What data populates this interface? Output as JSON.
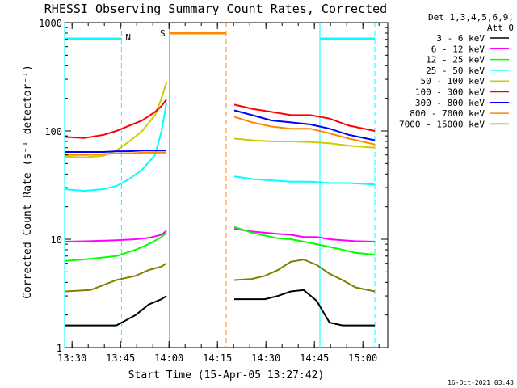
{
  "chart_data": {
    "type": "line",
    "title": "RHESSI Observing Summary Count Rates, Corrected",
    "xlabel": "Start Time (15-Apr-05 13:27:42)",
    "ylabel": "Corrected Count Rate (s⁻¹ detector⁻¹)",
    "yscale": "log",
    "xlim_minutes": [
      0,
      100
    ],
    "ylim": [
      1,
      1000
    ],
    "x_ticks": [
      {
        "label": "13:30",
        "min": 2.3
      },
      {
        "label": "13:45",
        "min": 17.3
      },
      {
        "label": "14:00",
        "min": 32.3
      },
      {
        "label": "14:15",
        "min": 47.3
      },
      {
        "label": "14:30",
        "min": 62.3
      },
      {
        "label": "14:45",
        "min": 77.3
      },
      {
        "label": "15:00",
        "min": 92.3
      }
    ],
    "y_ticks": [
      {
        "label": "1",
        "value": 1
      },
      {
        "label": "10",
        "value": 10
      },
      {
        "label": "100",
        "value": 100
      },
      {
        "label": "1000",
        "value": 1000
      }
    ],
    "legend_title": "Det 1,3,4,5,6,9,",
    "legend_subtitle": "Att 0",
    "annotations": {
      "night_label": "N",
      "saa_label": "S",
      "date_stamp": "16-Oct-2021 03:43",
      "night_intervals": [
        [
          0,
          17.6
        ],
        [
          79.0,
          96.0
        ]
      ],
      "saa_interval": [
        32.5,
        50.0
      ]
    },
    "data_gap": [
      31.5,
      52.5
    ],
    "series": [
      {
        "name": "3 - 6 keV",
        "color": "#000000",
        "x": [
          0,
          8,
          16,
          22,
          26,
          30,
          31.5,
          52.5,
          58,
          62,
          66,
          70,
          74,
          78,
          82,
          86,
          90,
          96
        ],
        "y": [
          1.6,
          1.6,
          1.6,
          2.0,
          2.5,
          2.8,
          3.0,
          2.8,
          2.8,
          2.8,
          3.0,
          3.3,
          3.4,
          2.7,
          1.7,
          1.6,
          1.6,
          1.6
        ]
      },
      {
        "name": "6 - 12 keV",
        "color": "#ff00ff",
        "x": [
          0,
          8,
          16,
          22,
          26,
          30,
          31.5,
          52.5,
          58,
          62,
          66,
          70,
          74,
          78,
          82,
          86,
          90,
          96
        ],
        "y": [
          9.5,
          9.6,
          9.8,
          10.0,
          10.3,
          11.0,
          12.0,
          12.5,
          11.8,
          11.5,
          11.2,
          11.0,
          10.5,
          10.5,
          10.0,
          9.8,
          9.6,
          9.5
        ]
      },
      {
        "name": "12 - 25 keV",
        "color": "#00ff00",
        "x": [
          0,
          8,
          16,
          22,
          26,
          30,
          31.5,
          52.5,
          58,
          62,
          66,
          70,
          74,
          78,
          82,
          86,
          90,
          96
        ],
        "y": [
          6.3,
          6.6,
          7.0,
          8.0,
          9.0,
          10.5,
          11.5,
          13.0,
          11.5,
          10.8,
          10.2,
          10.0,
          9.5,
          9.0,
          8.5,
          8.0,
          7.5,
          7.2
        ]
      },
      {
        "name": "25 - 50 keV",
        "color": "#00ffff",
        "x": [
          0,
          6,
          12,
          16,
          20,
          24,
          28,
          30,
          31.5,
          52.5,
          58,
          64,
          70,
          76,
          82,
          88,
          96
        ],
        "y": [
          29,
          28,
          29,
          31,
          36,
          44,
          60,
          100,
          180,
          38,
          36,
          35,
          34,
          34,
          33,
          33,
          32
        ]
      },
      {
        "name": "50 - 100 keV",
        "color": "#cccc00",
        "x": [
          0,
          6,
          12,
          16,
          20,
          24,
          28,
          30,
          31.5,
          52.5,
          58,
          64,
          70,
          76,
          82,
          88,
          96
        ],
        "y": [
          58,
          57,
          59,
          66,
          80,
          100,
          140,
          200,
          280,
          85,
          82,
          80,
          80,
          79,
          77,
          73,
          70
        ]
      },
      {
        "name": "100 - 300 keV",
        "color": "#ff0000",
        "x": [
          0,
          6,
          12,
          16,
          20,
          24,
          28,
          30,
          31.5,
          52.5,
          58,
          64,
          70,
          76,
          82,
          88,
          96
        ],
        "y": [
          88,
          86,
          92,
          100,
          112,
          125,
          150,
          170,
          195,
          175,
          160,
          150,
          140,
          140,
          130,
          112,
          100
        ]
      },
      {
        "name": "300 - 800 keV",
        "color": "#0000ff",
        "x": [
          0,
          6,
          12,
          16,
          20,
          24,
          28,
          30,
          31.5,
          52.5,
          58,
          64,
          70,
          76,
          82,
          88,
          96
        ],
        "y": [
          64,
          64,
          64,
          65,
          65,
          66,
          66,
          66,
          66,
          155,
          140,
          125,
          120,
          115,
          105,
          92,
          82
        ]
      },
      {
        "name": "800 - 7000 keV",
        "color": "#ff8800",
        "x": [
          0,
          6,
          12,
          16,
          20,
          24,
          28,
          30,
          31.5,
          52.5,
          58,
          64,
          70,
          76,
          82,
          88,
          96
        ],
        "y": [
          60,
          60,
          61,
          62,
          62,
          63,
          63,
          63,
          63,
          135,
          120,
          110,
          105,
          105,
          95,
          85,
          75
        ]
      },
      {
        "name": "7000 - 15000 keV",
        "color": "#808000",
        "x": [
          0,
          8,
          16,
          22,
          26,
          30,
          31.5,
          52.5,
          58,
          62,
          66,
          70,
          74,
          78,
          82,
          86,
          90,
          96
        ],
        "y": [
          3.3,
          3.4,
          4.2,
          4.6,
          5.2,
          5.6,
          6.0,
          4.2,
          4.3,
          4.6,
          5.2,
          6.2,
          6.5,
          5.8,
          4.8,
          4.2,
          3.6,
          3.3
        ]
      }
    ]
  }
}
